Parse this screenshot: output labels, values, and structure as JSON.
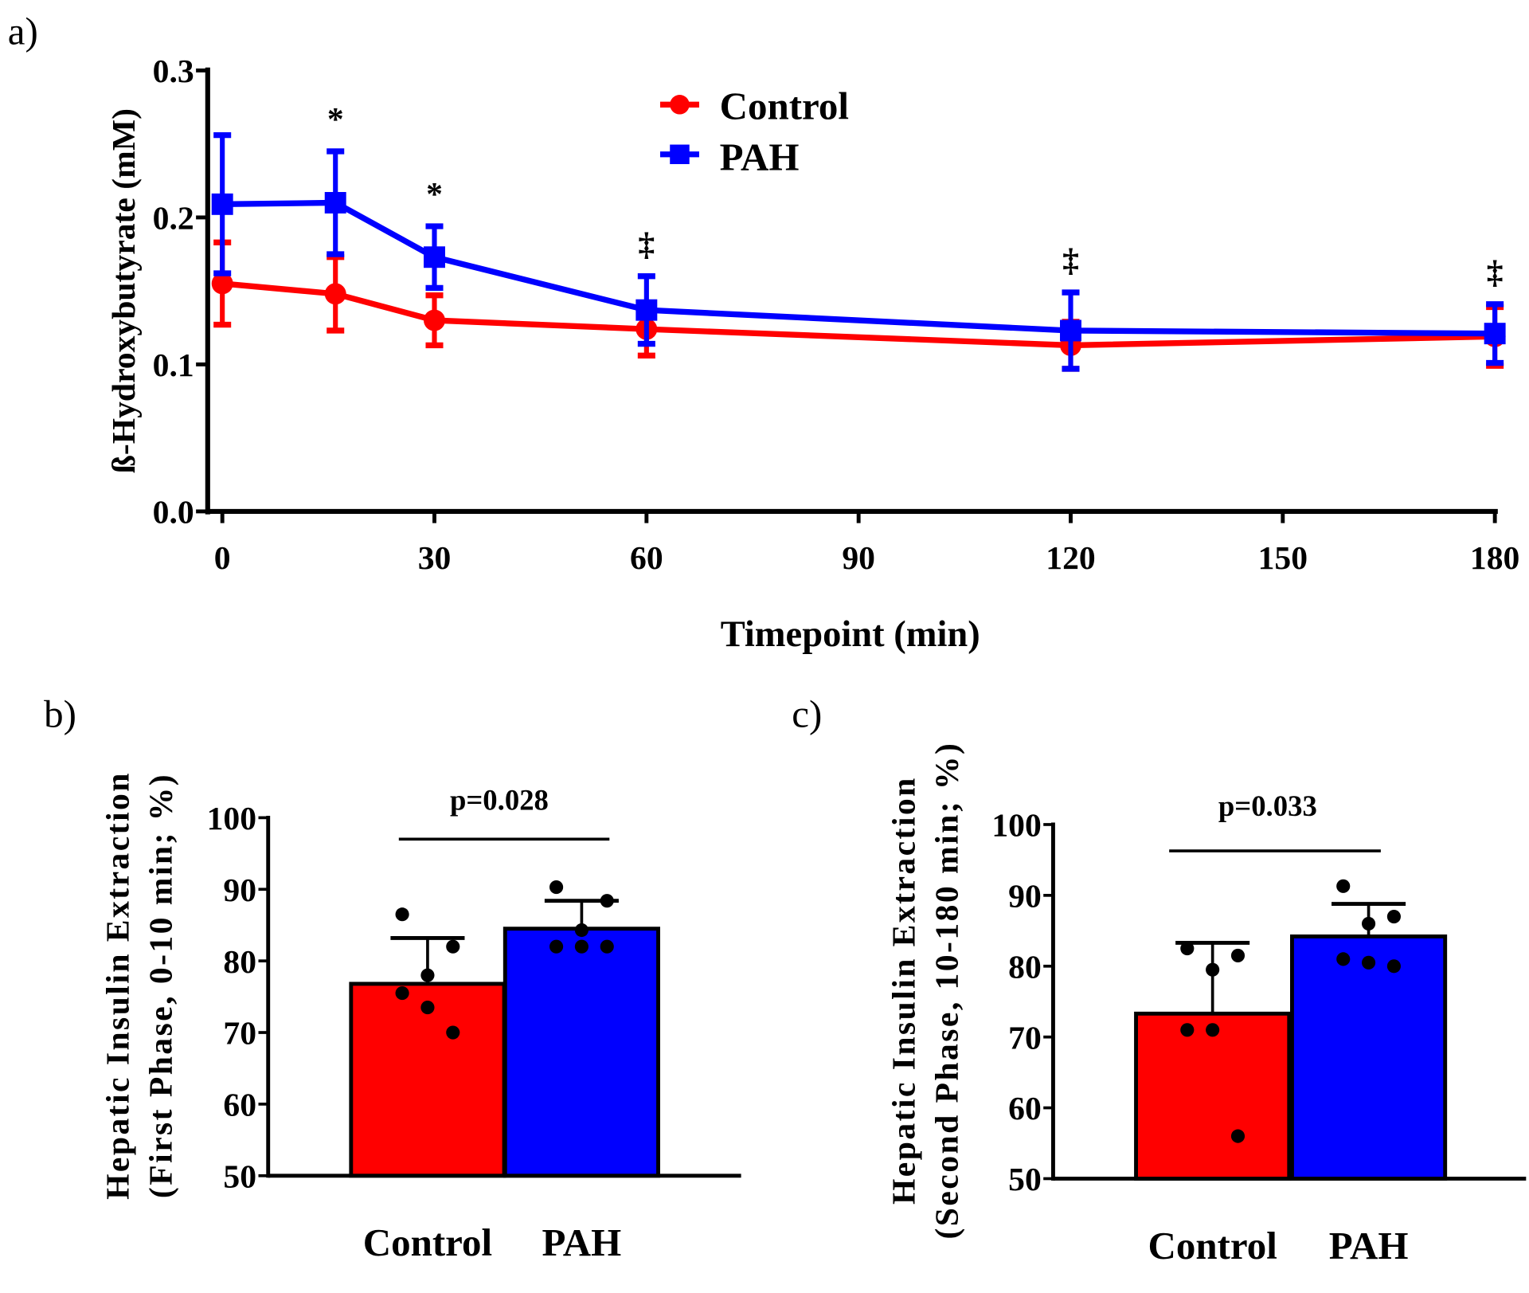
{
  "colors": {
    "control": "#ff0000",
    "pah": "#0000ff",
    "axis": "#000000"
  },
  "chart_data": [
    {
      "panel": "a)",
      "type": "line",
      "xlabel": "Timepoint (min)",
      "ylabel": "ß-Hydroxybutyrate (mM)",
      "xlim": [
        0,
        180
      ],
      "ylim": [
        0,
        0.3
      ],
      "xticks": [
        "0",
        "30",
        "60",
        "90",
        "120",
        "150",
        "180"
      ],
      "yticks": [
        "0.0",
        "0.1",
        "0.2",
        "0.3"
      ],
      "legend_position": "top-center",
      "x": [
        0,
        16,
        30,
        60,
        120,
        180
      ],
      "series": [
        {
          "name": "Control",
          "marker": "circle",
          "values": [
            0.155,
            0.148,
            0.13,
            0.124,
            0.113,
            0.119
          ],
          "errors": [
            0.028,
            0.025,
            0.017,
            0.018,
            0.016,
            0.02
          ]
        },
        {
          "name": "PAH",
          "marker": "square",
          "values": [
            0.209,
            0.21,
            0.173,
            0.137,
            0.123,
            0.121
          ],
          "errors": [
            0.047,
            0.035,
            0.021,
            0.023,
            0.026,
            0.02
          ]
        }
      ],
      "annotations": [
        {
          "x": 16,
          "text": "*"
        },
        {
          "x": 30,
          "text": "*"
        },
        {
          "x": 60,
          "text": "‡"
        },
        {
          "x": 120,
          "text": "‡"
        },
        {
          "x": 180,
          "text": "‡"
        }
      ]
    },
    {
      "panel": "b)",
      "type": "bar",
      "ylabel_lines": [
        "Hepatic Insulin Extraction",
        "(First Phase, 0-10 min; %)"
      ],
      "ylim": [
        50,
        100
      ],
      "yticks": [
        "50",
        "60",
        "70",
        "80",
        "90",
        "100"
      ],
      "categories": [
        "Control",
        "PAH"
      ],
      "values": [
        76.8,
        84.5
      ],
      "errors": [
        6.4,
        3.9
      ],
      "points": [
        [
          86.5,
          82.0,
          78.0,
          75.5,
          73.5,
          70.0
        ],
        [
          90.3,
          88.4,
          84.3,
          82.0,
          82.0,
          82.0
        ]
      ],
      "significance": "p=0.028"
    },
    {
      "panel": "c)",
      "type": "bar",
      "ylabel_lines": [
        "Hepatic Insulin Extraction",
        "(Second Phase, 10-180 min; %)"
      ],
      "ylim": [
        50,
        100
      ],
      "yticks": [
        "50",
        "60",
        "70",
        "80",
        "90",
        "100"
      ],
      "categories": [
        "Control",
        "PAH"
      ],
      "values": [
        73.3,
        84.2
      ],
      "errors": [
        10.0,
        4.6
      ],
      "points": [
        [
          82.5,
          81.5,
          79.5,
          71.0,
          71.0,
          56.0
        ],
        [
          91.3,
          87.0,
          86.0,
          81.0,
          80.5,
          80.0
        ]
      ],
      "significance": "p=0.033"
    }
  ]
}
